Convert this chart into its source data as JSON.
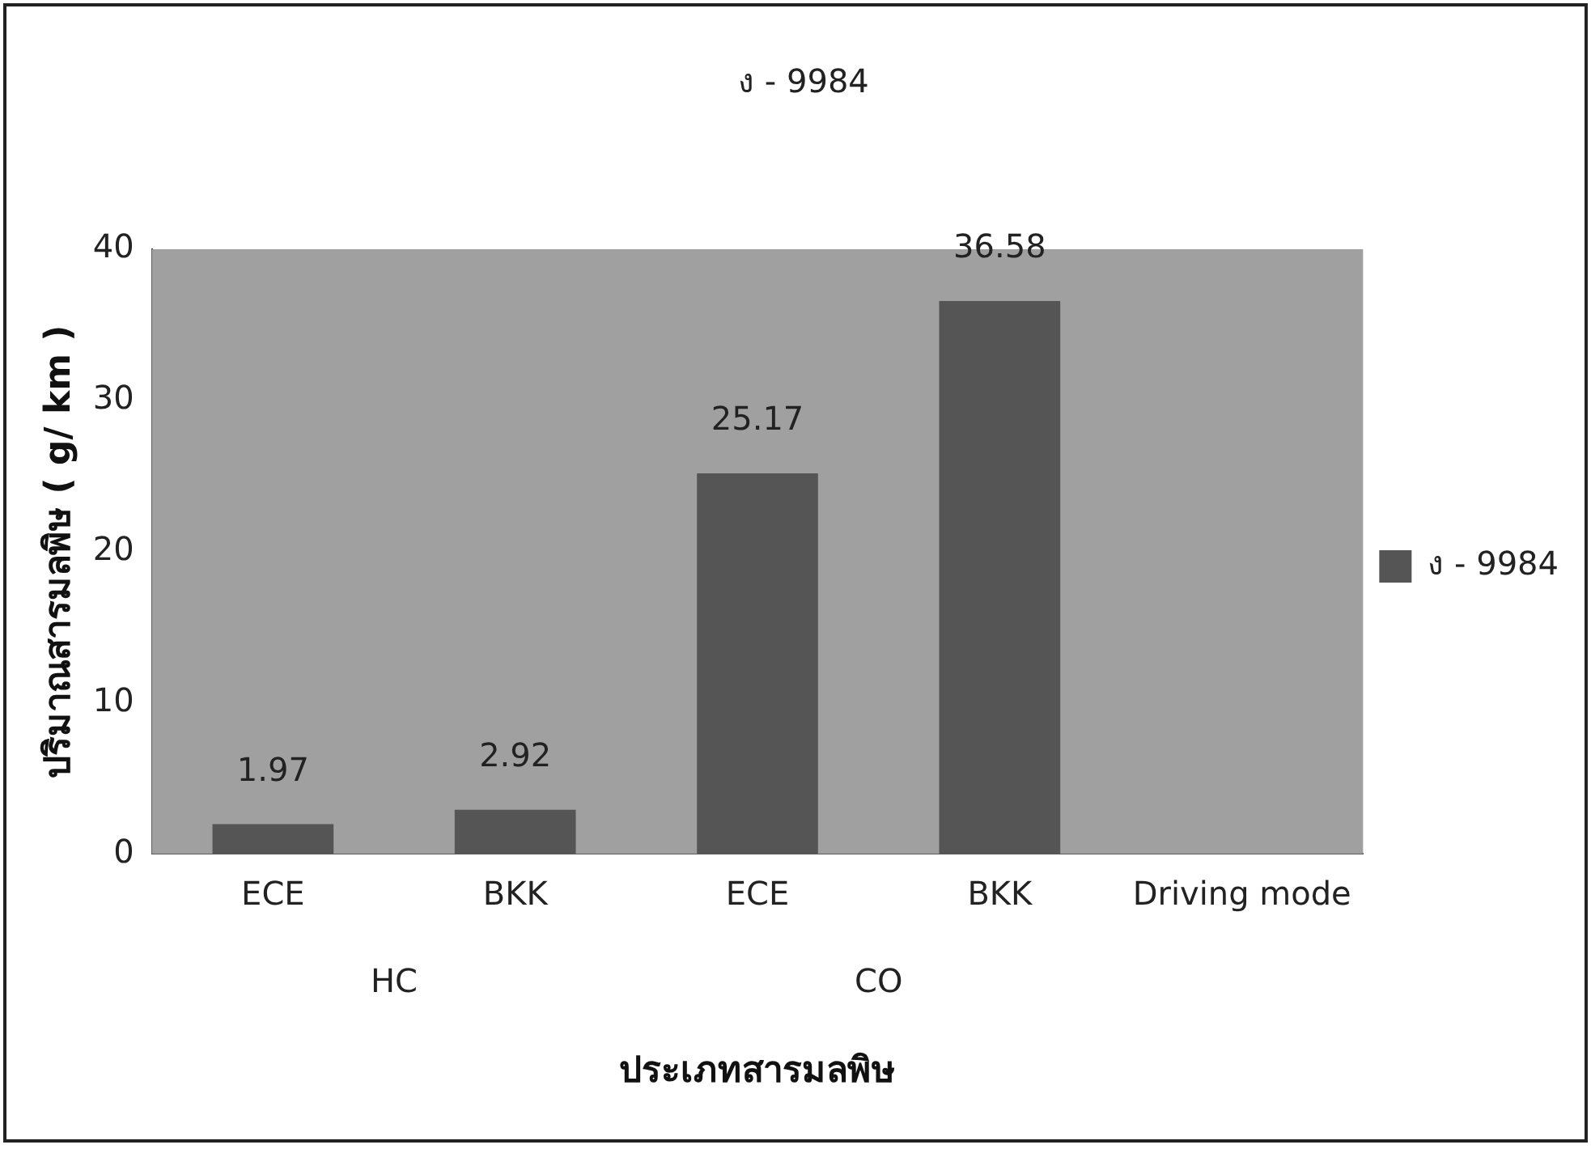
{
  "chart_data": {
    "type": "bar",
    "title": "ง - 9984",
    "xlabel": "ประเภทสารมลพิษ",
    "ylabel": "ปริมาณสารมลพิษ ( g/ km )",
    "categories": [
      "ECE",
      "BKK",
      "ECE",
      "BKK",
      "Driving mode"
    ],
    "series": [
      {
        "name": "ง - 9984",
        "color": "#555555",
        "values": [
          1.97,
          2.92,
          25.17,
          36.58,
          null
        ]
      }
    ],
    "ylim": [
      0,
      40
    ],
    "yticks": [
      0,
      10,
      20,
      30,
      40
    ],
    "grid": false,
    "legend": "right",
    "data_labels": true,
    "annotations": [
      "HC",
      "CO"
    ]
  }
}
